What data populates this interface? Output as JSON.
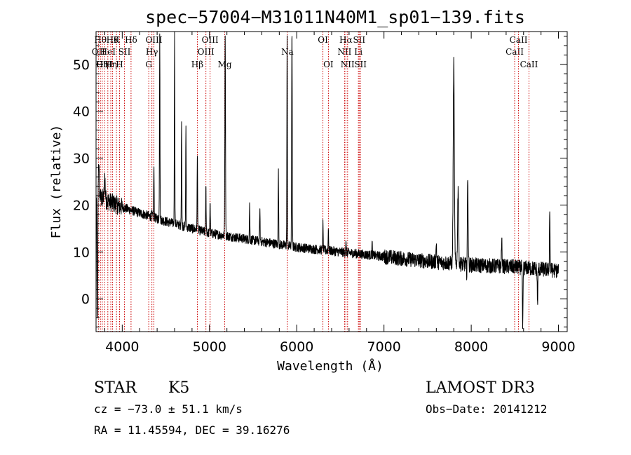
{
  "chart_data": {
    "type": "line",
    "title": "spec−57004−M31011N40M1_sp01−139.fits",
    "xlabel": "Wavelength (Å)",
    "ylabel": "Flux (relative)",
    "xlim": [
      3700,
      9100
    ],
    "ylim": [
      -7,
      57
    ],
    "xticks": [
      4000,
      5000,
      6000,
      7000,
      8000,
      9000
    ],
    "yticks": [
      0,
      10,
      20,
      30,
      40,
      50
    ],
    "line_color": "#000000",
    "marker_color": "#cc0000",
    "continuum": [
      [
        3700,
        22
      ],
      [
        4000,
        19.5
      ],
      [
        4500,
        16.5
      ],
      [
        5000,
        14
      ],
      [
        5500,
        12.5
      ],
      [
        6000,
        11
      ],
      [
        6500,
        10
      ],
      [
        7000,
        9
      ],
      [
        7500,
        8
      ],
      [
        8000,
        7.2
      ],
      [
        8500,
        6.8
      ],
      [
        9000,
        6
      ]
    ],
    "features": [
      {
        "x": 3730,
        "peak": 29,
        "width": 8
      },
      {
        "x": 3800,
        "peak": 26,
        "width": 8
      },
      {
        "x": 4340,
        "peak": 18,
        "width": 6
      },
      {
        "x": 4363,
        "peak": 28,
        "width": 4
      },
      {
        "x": 4430,
        "peak": 57,
        "width": 4
      },
      {
        "x": 4600,
        "peak": 57,
        "width": 4
      },
      {
        "x": 4680,
        "peak": 38,
        "width": 4
      },
      {
        "x": 4730,
        "peak": 37,
        "width": 4
      },
      {
        "x": 4861,
        "peak": 31,
        "width": 4
      },
      {
        "x": 4959,
        "peak": 24,
        "width": 4
      },
      {
        "x": 5007,
        "peak": 21,
        "width": 4
      },
      {
        "x": 5180,
        "peak": 57,
        "width": 5
      },
      {
        "x": 5460,
        "peak": 20,
        "width": 4
      },
      {
        "x": 5577,
        "peak": 19,
        "width": 4
      },
      {
        "x": 5790,
        "peak": 27,
        "width": 4
      },
      {
        "x": 5890,
        "peak": 57,
        "width": 4
      },
      {
        "x": 5945,
        "peak": 57,
        "width": 5
      },
      {
        "x": 6300,
        "peak": 16,
        "width": 4
      },
      {
        "x": 6363,
        "peak": 15,
        "width": 4
      },
      {
        "x": 6563,
        "peak": 12,
        "width": 5
      },
      {
        "x": 6864,
        "peak": 12,
        "width": 4
      },
      {
        "x": 7600,
        "peak": 12,
        "width": 5
      },
      {
        "x": 7800,
        "peak": 50,
        "width": 9
      },
      {
        "x": 7850,
        "peak": 24,
        "width": 8
      },
      {
        "x": 7960,
        "peak": 25,
        "width": 7
      },
      {
        "x": 8350,
        "peak": 12,
        "width": 6
      },
      {
        "x": 8900,
        "peak": 19,
        "width": 5
      }
    ],
    "absorptions": [
      {
        "x": 3715,
        "depth": -6,
        "width": 6
      },
      {
        "x": 7950,
        "depth": 4,
        "width": 5
      },
      {
        "x": 8590,
        "depth": -7,
        "width": 5
      },
      {
        "x": 8760,
        "depth": -1,
        "width": 5
      },
      {
        "x": 9010,
        "depth": 0,
        "width": 4
      }
    ],
    "line_markers": [
      {
        "x": 3727,
        "label": "OII",
        "row": 2
      },
      {
        "x": 3750,
        "label": "Hθ",
        "row": 1
      },
      {
        "x": 3771,
        "label": "Hη",
        "row": 3
      },
      {
        "x": 3798,
        "label": "OIII",
        "row": 3
      },
      {
        "x": 3835,
        "label": "HeI",
        "row": 2
      },
      {
        "x": 3869,
        "label": "Hη",
        "row": 3
      },
      {
        "x": 3889,
        "label": "Hθ",
        "row": 1
      },
      {
        "x": 3934,
        "label": "K",
        "row": 1
      },
      {
        "x": 3969,
        "label": "H",
        "row": 3
      },
      {
        "x": 4026,
        "label": "SII",
        "row": 2
      },
      {
        "x": 4101,
        "label": "Hδ",
        "row": 1
      },
      {
        "x": 4304,
        "label": "G",
        "row": 3
      },
      {
        "x": 4340,
        "label": "Hγ",
        "row": 2
      },
      {
        "x": 4363,
        "label": "OIII",
        "row": 1
      },
      {
        "x": 4861,
        "label": "Hβ",
        "row": 3
      },
      {
        "x": 4959,
        "label": "OIII",
        "row": 2
      },
      {
        "x": 5007,
        "label": "OIII",
        "row": 1
      },
      {
        "x": 5175,
        "label": "Mg",
        "row": 3
      },
      {
        "x": 5893,
        "label": "Na",
        "row": 2
      },
      {
        "x": 6300,
        "label": "OI",
        "row": 1
      },
      {
        "x": 6363,
        "label": "OI",
        "row": 3
      },
      {
        "x": 6548,
        "label": "NII",
        "row": 2
      },
      {
        "x": 6563,
        "label": "Hα",
        "row": 1
      },
      {
        "x": 6583,
        "label": "NII",
        "row": 3
      },
      {
        "x": 6707,
        "label": "Li",
        "row": 2
      },
      {
        "x": 6716,
        "label": "SII",
        "row": 1
      },
      {
        "x": 6731,
        "label": "SII",
        "row": 3
      },
      {
        "x": 8498,
        "label": "CaII",
        "row": 2
      },
      {
        "x": 8542,
        "label": "CaII",
        "row": 1
      },
      {
        "x": 8662,
        "label": "CaII",
        "row": 3
      }
    ]
  },
  "info": {
    "class": "STAR",
    "subclass": "K5",
    "survey": "LAMOST DR3",
    "redshift": "cz = −73.0 ± 51.1 km/s",
    "obs_date": "Obs−Date: 20141212",
    "coords": "RA =  11.45594, DEC =  39.16276"
  }
}
